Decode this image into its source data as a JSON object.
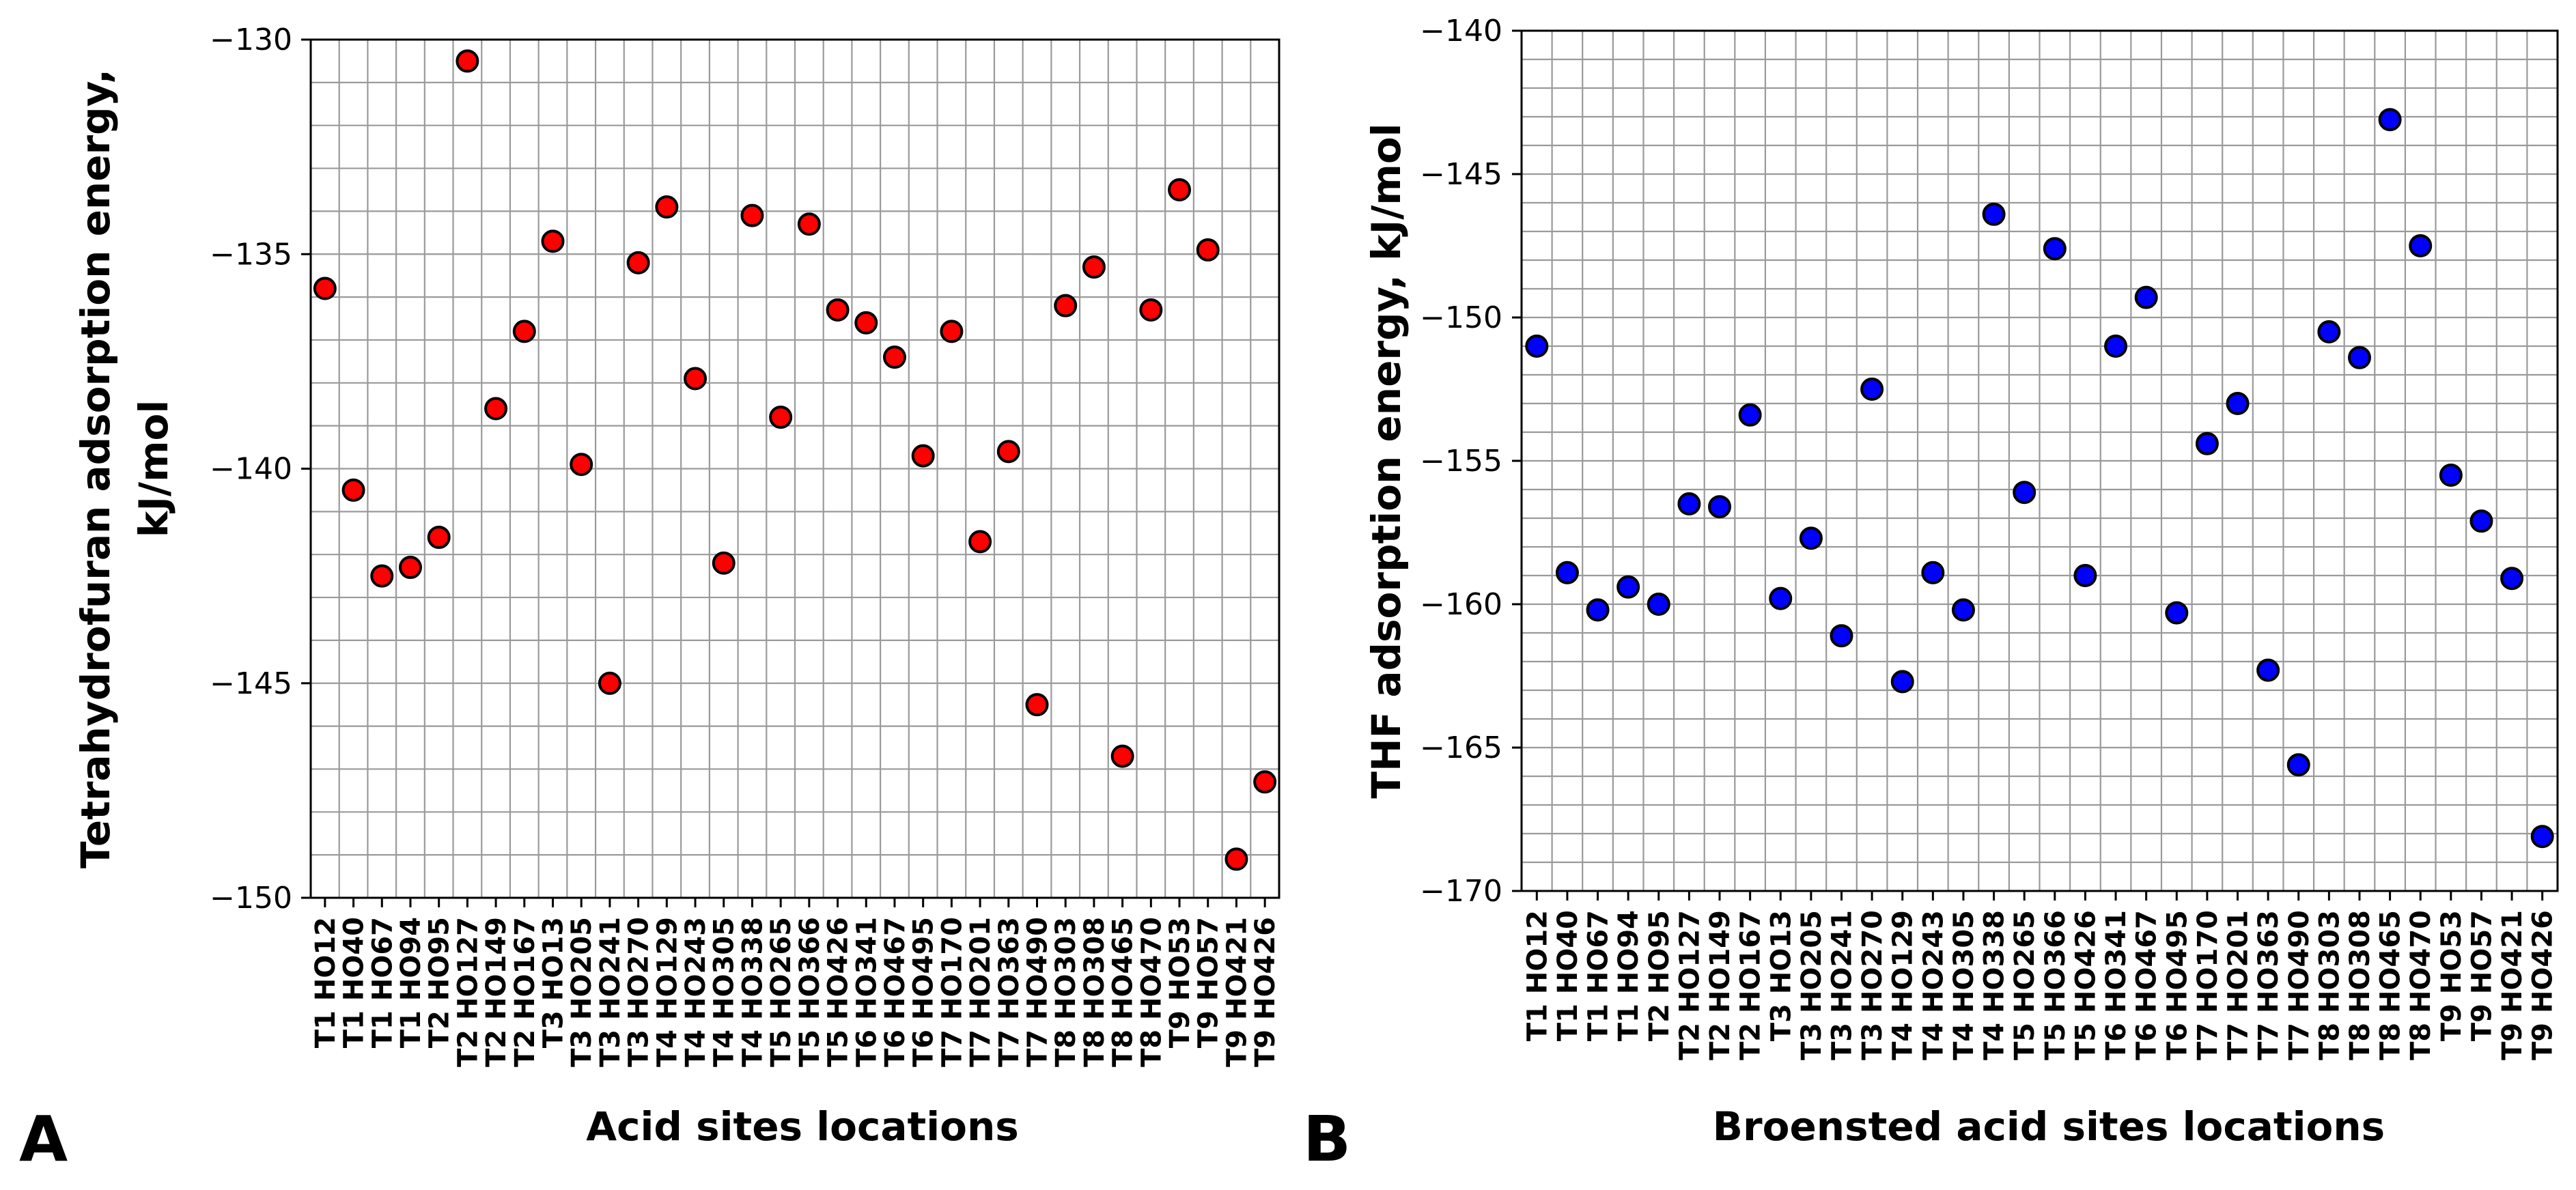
{
  "chart_data": [
    {
      "type": "scatter",
      "panel_label": "A",
      "xlabel": "Acid sites locations",
      "ylabel_lines": [
        "Tetrahydrofuran adsorption energy,",
        "kJ/mol"
      ],
      "ylim": [
        -150,
        -130
      ],
      "yticks": [
        -150,
        -145,
        -140,
        -135,
        -130
      ],
      "ytick_labels": [
        "−150",
        "−145",
        "−140",
        "−135",
        "−130"
      ],
      "y_minor_step": 1,
      "marker_color": "#ff0000",
      "categories": [
        "T1 HO12",
        "T1 HO40",
        "T1 HO67",
        "T1 HO94",
        "T2 HO95",
        "T2 HO127",
        "T2 HO149",
        "T2 HO167",
        "T3 HO13",
        "T3 HO205",
        "T3 HO241",
        "T3 HO270",
        "T4 HO129",
        "T4 HO243",
        "T4 HO305",
        "T4 HO338",
        "T5 HO265",
        "T5 HO366",
        "T5 HO426",
        "T6 HO341",
        "T6 HO467",
        "T6 HO495",
        "T7 HO170",
        "T7 HO201",
        "T7 HO363",
        "T7 HO490",
        "T8 HO303",
        "T8 HO308",
        "T8 HO465",
        "T8 HO470",
        "T9 HO53",
        "T9 HO57",
        "T9 HO421",
        "T9 HO426"
      ],
      "values": [
        -135.8,
        -140.5,
        -142.5,
        -142.3,
        -141.6,
        -130.5,
        -138.6,
        -136.8,
        -134.7,
        -139.9,
        -145.0,
        -135.2,
        -133.9,
        -137.9,
        -142.2,
        -134.1,
        -138.8,
        -134.3,
        -136.3,
        -136.6,
        -137.4,
        -139.7,
        -136.8,
        -141.7,
        -139.6,
        -145.5,
        -136.2,
        -135.3,
        -146.7,
        -136.3,
        -133.5,
        -134.9,
        -149.1,
        -147.3
      ]
    },
    {
      "type": "scatter",
      "panel_label": "B",
      "xlabel": "Broensted acid sites locations",
      "ylabel_lines": [
        "THF adsorption energy, kJ/mol"
      ],
      "ylim": [
        -170,
        -140
      ],
      "yticks": [
        -170,
        -165,
        -160,
        -155,
        -150,
        -145,
        -140
      ],
      "ytick_labels": [
        "−170",
        "−165",
        "−160",
        "−155",
        "−150",
        "−145",
        "−140"
      ],
      "y_minor_step": 1,
      "marker_color": "#0000ff",
      "categories": [
        "T1 HO12",
        "T1 HO40",
        "T1 HO67",
        "T1 HO94",
        "T2 HO95",
        "T2 HO127",
        "T2 HO149",
        "T2 HO167",
        "T3 HO13",
        "T3 HO205",
        "T3 HO241",
        "T3 HO270",
        "T4 HO129",
        "T4 HO243",
        "T4 HO305",
        "T4 HO338",
        "T5 HO265",
        "T5 HO366",
        "T5 HO426",
        "T6 HO341",
        "T6 HO467",
        "T6 HO495",
        "T7 HO170",
        "T7 HO201",
        "T7 HO363",
        "T7 HO490",
        "T8 HO303",
        "T8 HO308",
        "T8 HO465",
        "T8 HO470",
        "T9 HO53",
        "T9 HO57",
        "T9 HO421",
        "T9 HO426"
      ],
      "values": [
        -151.0,
        -158.9,
        -160.2,
        -159.4,
        -160.0,
        -156.5,
        -156.6,
        -153.4,
        -159.8,
        -157.7,
        -161.1,
        -152.5,
        -162.7,
        -158.9,
        -160.2,
        -146.4,
        -156.1,
        -147.6,
        -159.0,
        -151.0,
        -149.3,
        -160.3,
        -154.4,
        -153.0,
        -162.3,
        -165.6,
        -150.5,
        -151.4,
        -143.1,
        -147.5,
        -155.5,
        -157.1,
        -159.1,
        -168.1
      ]
    }
  ]
}
